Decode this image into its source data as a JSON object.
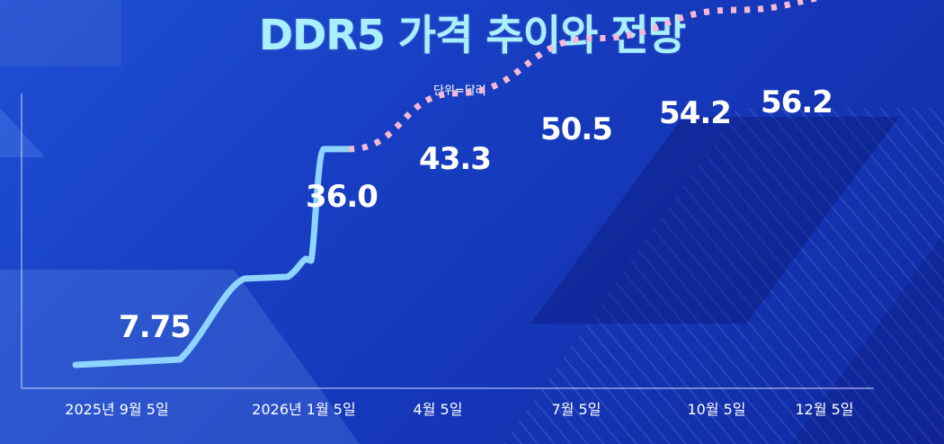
{
  "title": "DDR5 가격 추이와 전망",
  "unit_text": "단위=달러",
  "colors": {
    "actual_line": "#8fd3ff",
    "forecast_line": "#f7b8d4",
    "title": "#a9f0ff",
    "axis": "#cfd8ff"
  },
  "chart_data": {
    "type": "line",
    "title": "DDR5 가격 추이와 전망",
    "ylabel": "단위=달러",
    "categories": [
      "2025년 9월 5일",
      "2026년 1월 5일",
      "4월 5일",
      "7월 5일",
      "10월 5일",
      "12월 5일"
    ],
    "series": [
      {
        "style": "solid",
        "points": [
          {
            "x": "2025년 9월 5일",
            "y": 7.75
          },
          {
            "x": "2026년 1월 5일",
            "y": 36.0
          }
        ]
      },
      {
        "style": "dotted",
        "points": [
          {
            "x": "2026년 1월 5일",
            "y": 36.0
          },
          {
            "x": "4월 5일",
            "y": 43.3
          },
          {
            "x": "7월 5일",
            "y": 50.5
          },
          {
            "x": "10월 5일",
            "y": 54.2
          },
          {
            "x": "12월 5일",
            "y": 56.2
          }
        ]
      }
    ],
    "data_labels": [
      {
        "x": "2025년 9월 5일",
        "text": "7.75"
      },
      {
        "x": "2026년 1월 5일",
        "text": "36.0"
      },
      {
        "x": "4월 5일",
        "text": "43.3"
      },
      {
        "x": "7월 5일",
        "text": "50.5"
      },
      {
        "x": "10월 5일",
        "text": "54.2"
      },
      {
        "x": "12월 5일",
        "text": "56.2"
      }
    ],
    "grid": false,
    "legend": "none"
  }
}
